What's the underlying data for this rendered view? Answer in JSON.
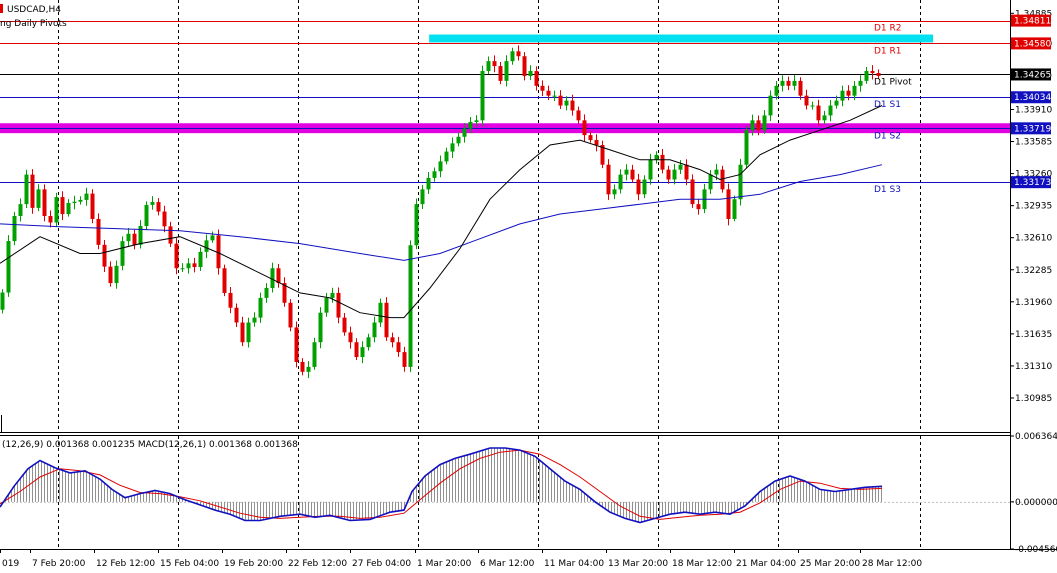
{
  "window": {
    "symbol_label": "USDCAD,H4",
    "indicator_label": "ng Daily Pivots"
  },
  "macd": {
    "label": "(12,26,9) 0.001368 0.001235 MACD(12,26,1) 0.001368 0.001368",
    "ticks": [
      "0.006364",
      "0.000000",
      "-0.004560"
    ],
    "ylim": [
      -0.00456,
      0.006364
    ]
  },
  "colors": {
    "bull": "#00a000",
    "bear": "#e00000",
    "ma_fast": "#000000",
    "ma_slow": "#1010c0",
    "pivot_red": "#e00000",
    "pivot_blue": "#1010c0",
    "cyan_zone": "#00e0f0",
    "magenta_zone": "#e000e0",
    "macd_signal": "#e00000",
    "macd_line": "#1010c0",
    "macd_hist": "#909090"
  },
  "chart_data": {
    "type": "candlestick",
    "symbol": "USDCAD",
    "timeframe": "H4",
    "ylim": [
      1.3064,
      1.3502
    ],
    "price_ticks": [
      "1.34885",
      "1.34580",
      "1.34265",
      "1.33910",
      "1.33585",
      "1.33260",
      "1.32935",
      "1.32610",
      "1.32285",
      "1.31960",
      "1.31635",
      "1.31310",
      "1.30985"
    ],
    "x_labels": [
      "019",
      "7 Feb 20:00",
      "12 Feb 12:00",
      "15 Feb 04:00",
      "19 Feb 20:00",
      "22 Feb 12:00",
      "27 Feb 04:00",
      "1 Mar 20:00",
      "6 Mar 12:00",
      "11 Mar 04:00",
      "13 Mar 20:00",
      "18 Mar 12:00",
      "21 Mar 04:00",
      "25 Mar 20:00",
      "28 Mar 12:00"
    ],
    "pivots": [
      {
        "name": "D1 R2",
        "value": 1.34811,
        "value_label": "1.34811",
        "color": "red"
      },
      {
        "name": "D1 R1",
        "value": 1.3458,
        "value_label": "1.34580",
        "color": "red"
      },
      {
        "name": "D1 Pivot",
        "value": 1.34265,
        "value_label": "1.34265",
        "color": "black"
      },
      {
        "name": "D1 S1",
        "value": 1.34034,
        "value_label": "1.34034",
        "color": "blue"
      },
      {
        "name": "D1 S2",
        "value": 1.33719,
        "value_label": "1.33719",
        "color": "blue"
      },
      {
        "name": "D1 S3",
        "value": 1.33173,
        "value_label": "1.33173",
        "color": "blue"
      }
    ],
    "zones": [
      {
        "name": "resistance",
        "low": 1.3459,
        "high": 1.3467,
        "start": 0.406,
        "color": "cyan"
      },
      {
        "name": "support",
        "low": 1.3367,
        "high": 1.3377,
        "start": 0.0,
        "color": "magenta"
      }
    ],
    "close_path": [
      [
        0,
        1.3188
      ],
      [
        10,
        1.3275
      ],
      [
        20,
        1.3295
      ],
      [
        27,
        1.333
      ],
      [
        30,
        1.3285
      ],
      [
        38,
        1.331
      ],
      [
        48,
        1.3265
      ],
      [
        55,
        1.3305
      ],
      [
        62,
        1.3285
      ],
      [
        70,
        1.33
      ],
      [
        78,
        1.3295
      ],
      [
        85,
        1.331
      ],
      [
        92,
        1.328
      ],
      [
        100,
        1.3245
      ],
      [
        106,
        1.3225
      ],
      [
        112,
        1.321
      ],
      [
        120,
        1.3255
      ],
      [
        128,
        1.3265
      ],
      [
        136,
        1.325
      ],
      [
        143,
        1.329
      ],
      [
        150,
        1.33
      ],
      [
        157,
        1.329
      ],
      [
        165,
        1.327
      ],
      [
        170,
        1.3255
      ],
      [
        176,
        1.323
      ],
      [
        182,
        1.323
      ],
      [
        188,
        1.3235
      ],
      [
        196,
        1.323
      ],
      [
        202,
        1.3255
      ],
      [
        208,
        1.326
      ],
      [
        214,
        1.3265
      ],
      [
        218,
        1.323
      ],
      [
        224,
        1.3205
      ],
      [
        230,
        1.319
      ],
      [
        236,
        1.3175
      ],
      [
        242,
        1.3155
      ],
      [
        248,
        1.3175
      ],
      [
        254,
        1.318
      ],
      [
        260,
        1.32
      ],
      [
        266,
        1.321
      ],
      [
        272,
        1.323
      ],
      [
        278,
        1.3215
      ],
      [
        284,
        1.3195
      ],
      [
        290,
        1.317
      ],
      [
        296,
        1.3135
      ],
      [
        302,
        1.3125
      ],
      [
        308,
        1.313
      ],
      [
        314,
        1.3155
      ],
      [
        320,
        1.3185
      ],
      [
        326,
        1.32
      ],
      [
        332,
        1.3205
      ],
      [
        338,
        1.318
      ],
      [
        344,
        1.3165
      ],
      [
        350,
        1.3155
      ],
      [
        356,
        1.314
      ],
      [
        362,
        1.315
      ],
      [
        368,
        1.316
      ],
      [
        374,
        1.3175
      ],
      [
        380,
        1.3195
      ],
      [
        386,
        1.316
      ],
      [
        392,
        1.3155
      ],
      [
        398,
        1.3145
      ],
      [
        404,
        1.313
      ],
      [
        408,
        1.3235
      ],
      [
        414,
        1.329
      ],
      [
        420,
        1.3305
      ],
      [
        426,
        1.332
      ],
      [
        432,
        1.3325
      ],
      [
        438,
        1.3335
      ],
      [
        444,
        1.3345
      ],
      [
        450,
        1.3355
      ],
      [
        456,
        1.336
      ],
      [
        462,
        1.337
      ],
      [
        468,
        1.3375
      ],
      [
        474,
        1.3385
      ],
      [
        478,
        1.3375
      ],
      [
        482,
        1.343
      ],
      [
        488,
        1.344
      ],
      [
        494,
        1.3435
      ],
      [
        500,
        1.342
      ],
      [
        506,
        1.344
      ],
      [
        512,
        1.345
      ],
      [
        518,
        1.3445
      ],
      [
        524,
        1.3425
      ],
      [
        530,
        1.343
      ],
      [
        536,
        1.3415
      ],
      [
        542,
        1.341
      ],
      [
        548,
        1.3405
      ],
      [
        554,
        1.3405
      ],
      [
        560,
        1.3395
      ],
      [
        566,
        1.34
      ],
      [
        572,
        1.339
      ],
      [
        578,
        1.338
      ],
      [
        584,
        1.3365
      ],
      [
        590,
        1.336
      ],
      [
        596,
        1.3355
      ],
      [
        602,
        1.3335
      ],
      [
        608,
        1.3305
      ],
      [
        614,
        1.331
      ],
      [
        620,
        1.3325
      ],
      [
        626,
        1.333
      ],
      [
        632,
        1.332
      ],
      [
        638,
        1.3305
      ],
      [
        644,
        1.332
      ],
      [
        650,
        1.334
      ],
      [
        656,
        1.3345
      ],
      [
        662,
        1.333
      ],
      [
        668,
        1.332
      ],
      [
        674,
        1.333
      ],
      [
        680,
        1.3335
      ],
      [
        686,
        1.332
      ],
      [
        692,
        1.3295
      ],
      [
        698,
        1.329
      ],
      [
        704,
        1.331
      ],
      [
        710,
        1.3325
      ],
      [
        716,
        1.333
      ],
      [
        722,
        1.331
      ],
      [
        728,
        1.328
      ],
      [
        734,
        1.33
      ],
      [
        740,
        1.3335
      ],
      [
        746,
        1.337
      ],
      [
        752,
        1.338
      ],
      [
        758,
        1.337
      ],
      [
        764,
        1.3385
      ],
      [
        770,
        1.3405
      ],
      [
        776,
        1.3415
      ],
      [
        782,
        1.342
      ],
      [
        788,
        1.3415
      ],
      [
        794,
        1.342
      ],
      [
        800,
        1.3405
      ],
      [
        806,
        1.3395
      ],
      [
        812,
        1.3395
      ],
      [
        818,
        1.338
      ],
      [
        824,
        1.3385
      ],
      [
        830,
        1.3395
      ],
      [
        836,
        1.34
      ],
      [
        842,
        1.341
      ],
      [
        848,
        1.3405
      ],
      [
        854,
        1.3415
      ],
      [
        860,
        1.342
      ],
      [
        866,
        1.343
      ],
      [
        872,
        1.3428
      ],
      [
        878,
        1.3425
      ],
      [
        882,
        1.343
      ]
    ],
    "ma_fast_path": [
      [
        0,
        1.3235
      ],
      [
        40,
        1.3262
      ],
      [
        80,
        1.3245
      ],
      [
        100,
        1.3245
      ],
      [
        140,
        1.3255
      ],
      [
        180,
        1.3262
      ],
      [
        220,
        1.3245
      ],
      [
        260,
        1.3225
      ],
      [
        300,
        1.3205
      ],
      [
        330,
        1.32
      ],
      [
        360,
        1.3185
      ],
      [
        390,
        1.318
      ],
      [
        404,
        1.318
      ],
      [
        430,
        1.321
      ],
      [
        460,
        1.325
      ],
      [
        490,
        1.33
      ],
      [
        520,
        1.333
      ],
      [
        550,
        1.3355
      ],
      [
        580,
        1.336
      ],
      [
        610,
        1.335
      ],
      [
        640,
        1.334
      ],
      [
        670,
        1.334
      ],
      [
        700,
        1.333
      ],
      [
        720,
        1.332
      ],
      [
        740,
        1.3325
      ],
      [
        760,
        1.3345
      ],
      [
        790,
        1.336
      ],
      [
        820,
        1.337
      ],
      [
        850,
        1.338
      ],
      [
        882,
        1.3395
      ]
    ],
    "ma_slow_path": [
      [
        0,
        1.3275
      ],
      [
        60,
        1.3272
      ],
      [
        120,
        1.327
      ],
      [
        180,
        1.3268
      ],
      [
        240,
        1.3262
      ],
      [
        300,
        1.3255
      ],
      [
        360,
        1.3245
      ],
      [
        404,
        1.3238
      ],
      [
        440,
        1.3245
      ],
      [
        480,
        1.326
      ],
      [
        520,
        1.3275
      ],
      [
        560,
        1.3285
      ],
      [
        600,
        1.329
      ],
      [
        640,
        1.3295
      ],
      [
        680,
        1.33
      ],
      [
        720,
        1.33
      ],
      [
        760,
        1.3305
      ],
      [
        800,
        1.3318
      ],
      [
        840,
        1.3325
      ],
      [
        882,
        1.3335
      ]
    ],
    "macd_path": [
      [
        0,
        -0.0005
      ],
      [
        14,
        0.0015
      ],
      [
        28,
        0.0032
      ],
      [
        40,
        0.004
      ],
      [
        55,
        0.0033
      ],
      [
        70,
        0.0028
      ],
      [
        85,
        0.003
      ],
      [
        100,
        0.0022
      ],
      [
        112,
        0.0012
      ],
      [
        125,
        0.0004
      ],
      [
        140,
        0.0008
      ],
      [
        155,
        0.0011
      ],
      [
        170,
        0.0008
      ],
      [
        185,
        0.0002
      ],
      [
        200,
        -0.0003
      ],
      [
        215,
        -0.0008
      ],
      [
        230,
        -0.0012
      ],
      [
        245,
        -0.0018
      ],
      [
        260,
        -0.0018
      ],
      [
        280,
        -0.0014
      ],
      [
        300,
        -0.0012
      ],
      [
        315,
        -0.0015
      ],
      [
        330,
        -0.0013
      ],
      [
        350,
        -0.0018
      ],
      [
        370,
        -0.0017
      ],
      [
        390,
        -0.001
      ],
      [
        404,
        -0.0008
      ],
      [
        412,
        0.001
      ],
      [
        425,
        0.0025
      ],
      [
        440,
        0.0036
      ],
      [
        455,
        0.0042
      ],
      [
        470,
        0.0046
      ],
      [
        490,
        0.0052
      ],
      [
        505,
        0.0052
      ],
      [
        520,
        0.005
      ],
      [
        535,
        0.0044
      ],
      [
        550,
        0.0032
      ],
      [
        565,
        0.002
      ],
      [
        580,
        0.0012
      ],
      [
        595,
        0.0
      ],
      [
        610,
        -0.001
      ],
      [
        625,
        -0.0016
      ],
      [
        640,
        -0.002
      ],
      [
        655,
        -0.0016
      ],
      [
        670,
        -0.0012
      ],
      [
        685,
        -0.001
      ],
      [
        700,
        -0.0012
      ],
      [
        715,
        -0.001
      ],
      [
        730,
        -0.0012
      ],
      [
        745,
        -0.0004
      ],
      [
        760,
        0.001
      ],
      [
        775,
        0.002
      ],
      [
        790,
        0.0025
      ],
      [
        805,
        0.002
      ],
      [
        820,
        0.0012
      ],
      [
        835,
        0.001
      ],
      [
        850,
        0.0012
      ],
      [
        865,
        0.0014
      ],
      [
        882,
        0.0015
      ]
    ],
    "signal_path": [
      [
        0,
        -0.0002
      ],
      [
        20,
        0.001
      ],
      [
        40,
        0.0024
      ],
      [
        60,
        0.0032
      ],
      [
        80,
        0.003
      ],
      [
        100,
        0.0026
      ],
      [
        120,
        0.0016
      ],
      [
        140,
        0.0009
      ],
      [
        160,
        0.0008
      ],
      [
        180,
        0.0005
      ],
      [
        200,
        0.0001
      ],
      [
        220,
        -0.0005
      ],
      [
        240,
        -0.0011
      ],
      [
        260,
        -0.0015
      ],
      [
        280,
        -0.0016
      ],
      [
        300,
        -0.0015
      ],
      [
        320,
        -0.0014
      ],
      [
        340,
        -0.0014
      ],
      [
        360,
        -0.0016
      ],
      [
        380,
        -0.0015
      ],
      [
        404,
        -0.0011
      ],
      [
        420,
        0.0002
      ],
      [
        440,
        0.0018
      ],
      [
        460,
        0.0032
      ],
      [
        480,
        0.0042
      ],
      [
        500,
        0.0048
      ],
      [
        520,
        0.005
      ],
      [
        540,
        0.0046
      ],
      [
        560,
        0.0036
      ],
      [
        580,
        0.0024
      ],
      [
        600,
        0.001
      ],
      [
        620,
        -0.0004
      ],
      [
        640,
        -0.0014
      ],
      [
        660,
        -0.0017
      ],
      [
        680,
        -0.0015
      ],
      [
        700,
        -0.0013
      ],
      [
        720,
        -0.0012
      ],
      [
        740,
        -0.001
      ],
      [
        760,
        -0.0001
      ],
      [
        780,
        0.0012
      ],
      [
        800,
        0.002
      ],
      [
        820,
        0.0018
      ],
      [
        840,
        0.0013
      ],
      [
        860,
        0.0012
      ],
      [
        882,
        0.0013
      ]
    ]
  }
}
